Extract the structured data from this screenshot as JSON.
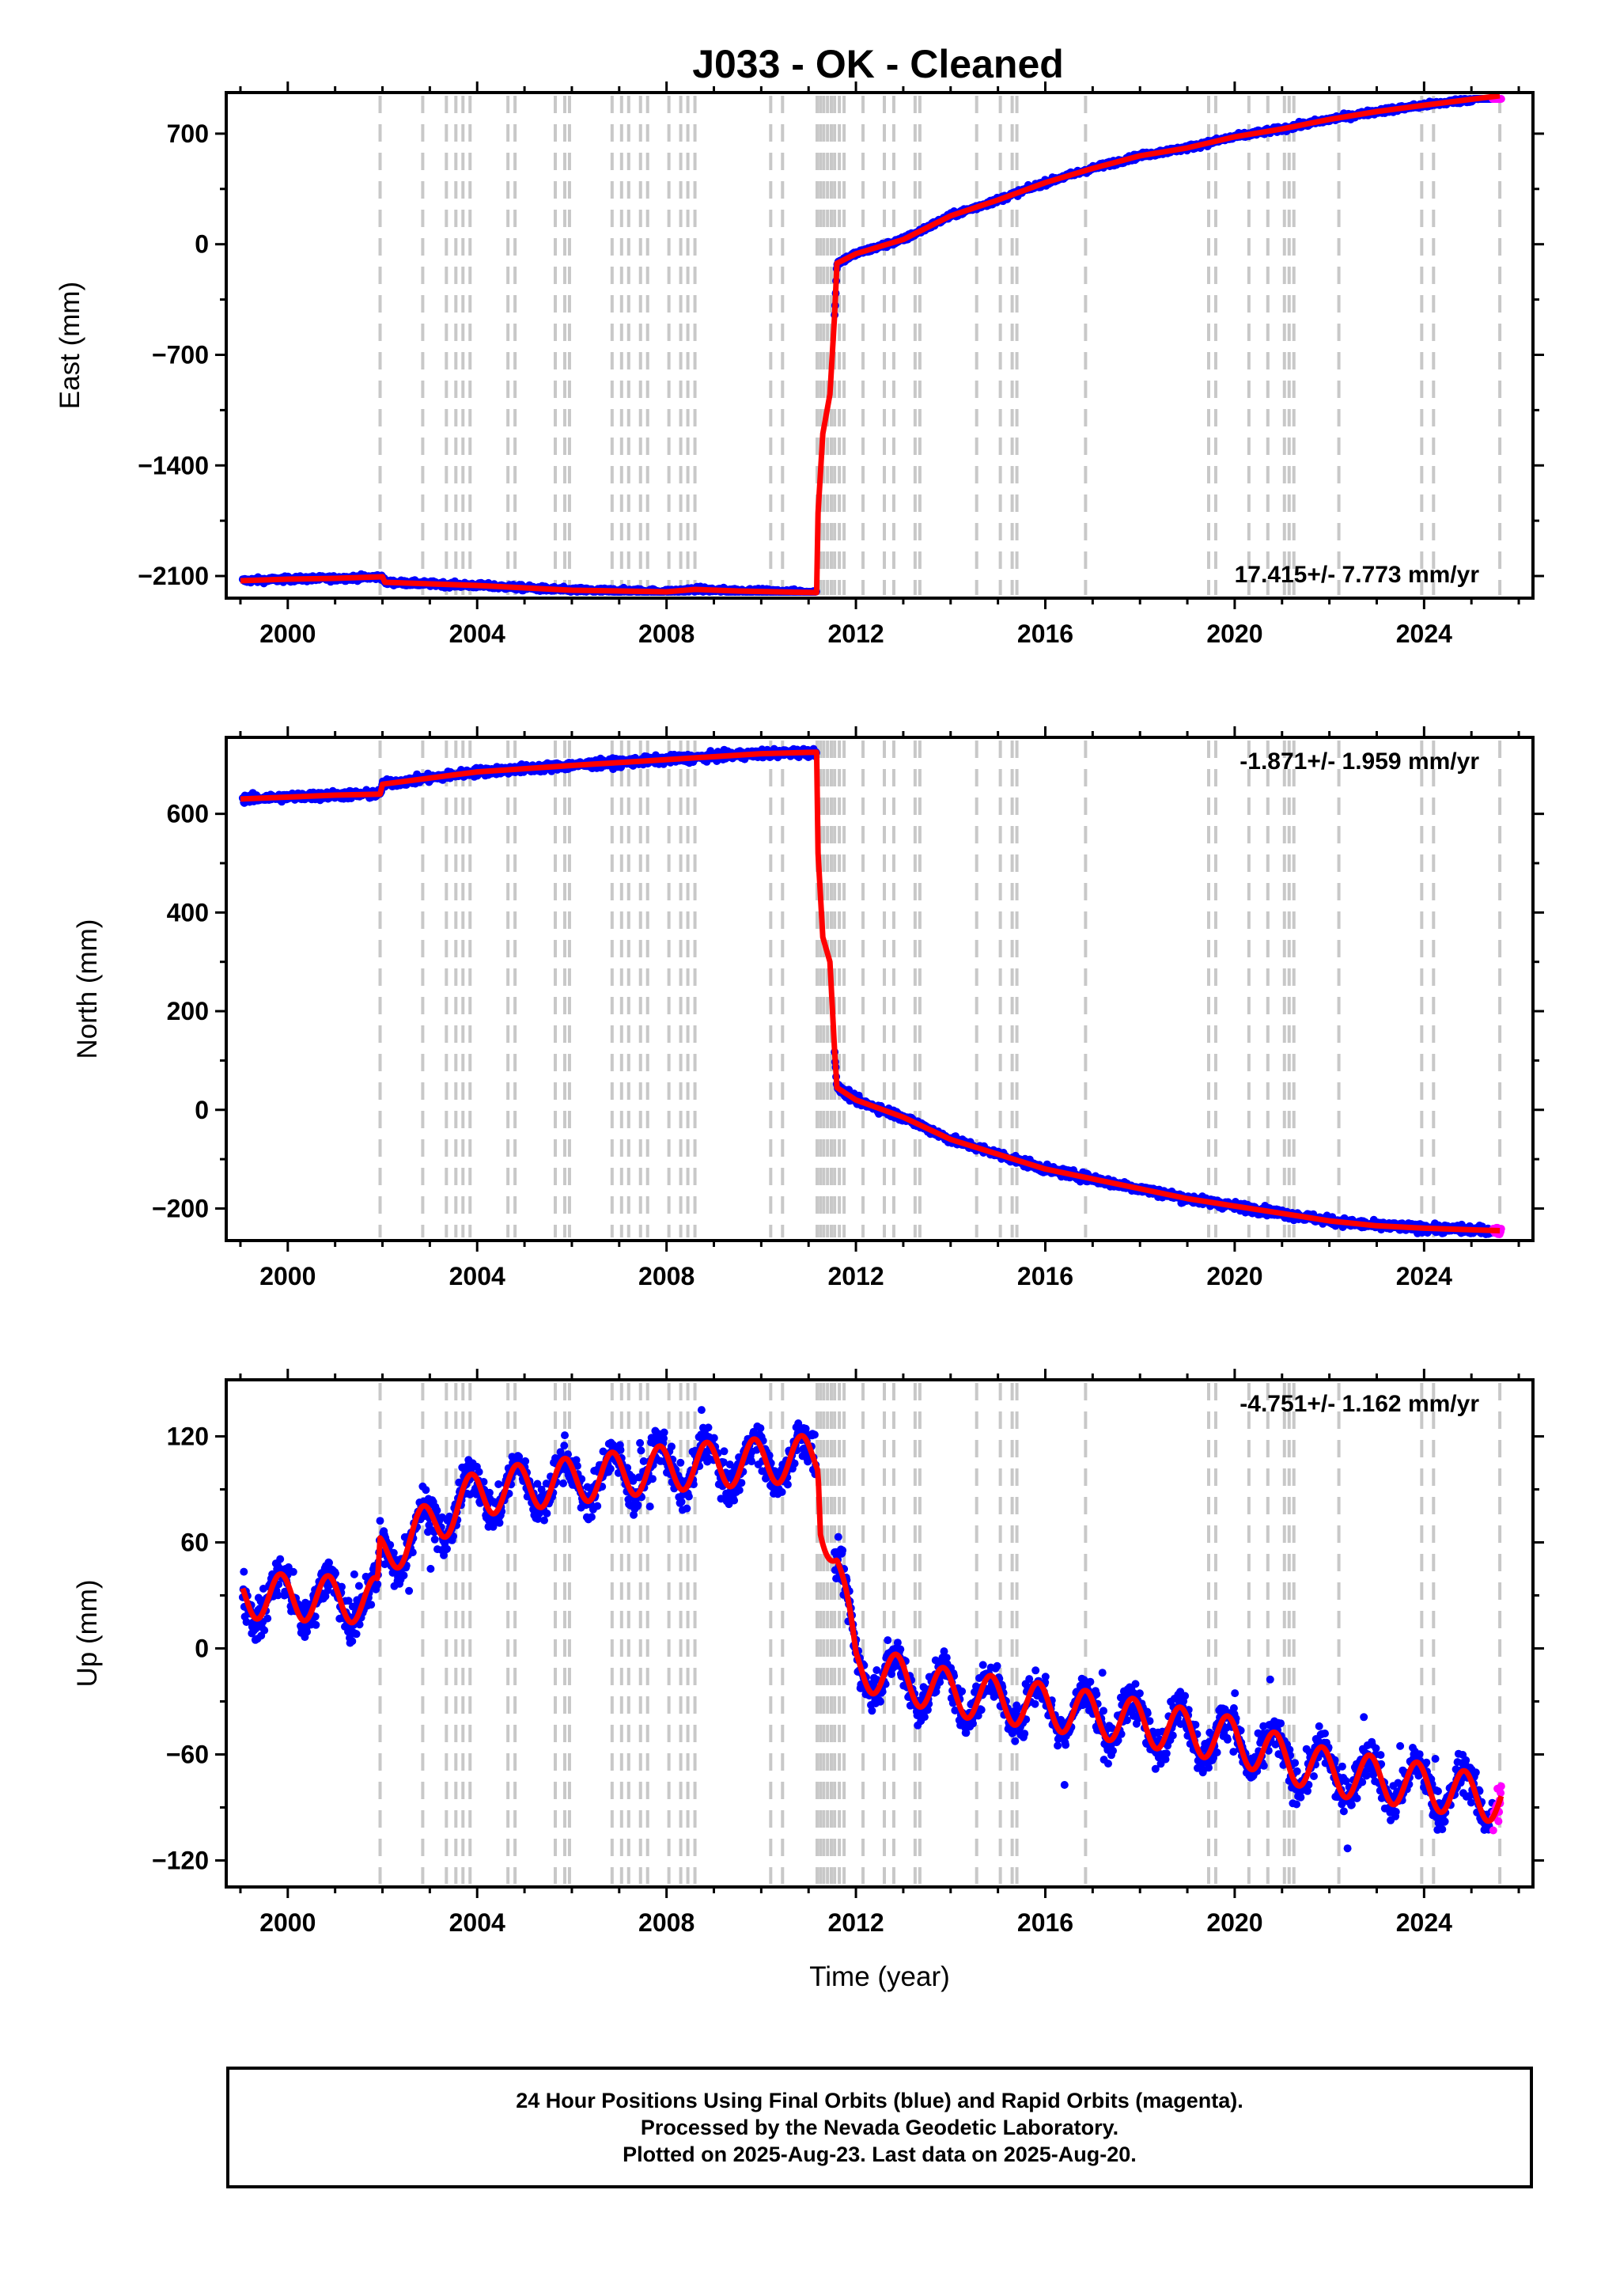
{
  "colors": {
    "final_orbits": "#0000ff",
    "rapid_orbits": "#ff00ff",
    "model_fit": "#ff0000",
    "equipment_change": "#c8c8c8"
  },
  "chart_data": [
    {
      "type": "scatter",
      "title": "J033  - OK - Cleaned",
      "xlabel": "",
      "ylabel": "East (mm)",
      "xlim": [
        1998.7,
        2026.3
      ],
      "ylim": [
        -2240,
        960
      ],
      "x_ticks": [
        "2000",
        "2004",
        "2008",
        "2012",
        "2016",
        "2020",
        "2024"
      ],
      "y_ticks": [
        "700",
        "0",
        "−700",
        "−1400",
        "−2100"
      ],
      "rate_label": "17.415+/- 7.773 mm/yr",
      "fit_line": [
        [
          1999.0,
          -2130
        ],
        [
          2000.0,
          -2120
        ],
        [
          2001.0,
          -2115
        ],
        [
          2002.0,
          -2105
        ],
        [
          2002.05,
          -2140
        ],
        [
          2004.0,
          -2160
        ],
        [
          2006.0,
          -2190
        ],
        [
          2008.0,
          -2200
        ],
        [
          2008.6,
          -2185
        ],
        [
          2009.5,
          -2195
        ],
        [
          2011.17,
          -2205
        ],
        [
          2011.2,
          -1700
        ],
        [
          2011.3,
          -1200
        ],
        [
          2011.45,
          -950
        ],
        [
          2011.55,
          -450
        ],
        [
          2011.6,
          -120
        ],
        [
          2012.0,
          -60
        ],
        [
          2013.0,
          30
        ],
        [
          2014.0,
          180
        ],
        [
          2015.0,
          280
        ],
        [
          2016.0,
          390
        ],
        [
          2017.0,
          480
        ],
        [
          2018.0,
          560
        ],
        [
          2019.0,
          610
        ],
        [
          2020.0,
          680
        ],
        [
          2021.0,
          730
        ],
        [
          2022.0,
          790
        ],
        [
          2023.0,
          840
        ],
        [
          2024.0,
          880
        ],
        [
          2025.6,
          940
        ]
      ],
      "scatter_noise": 12
    },
    {
      "type": "scatter",
      "title": "",
      "xlabel": "",
      "ylabel": "North (mm)",
      "xlim": [
        1998.7,
        2026.3
      ],
      "ylim": [
        -265,
        755
      ],
      "x_ticks": [
        "2000",
        "2004",
        "2008",
        "2012",
        "2016",
        "2020",
        "2024"
      ],
      "y_ticks": [
        "600",
        "400",
        "200",
        "0",
        "−200"
      ],
      "rate_label": "-1.871+/- 1.959 mm/yr",
      "fit_line": [
        [
          1999.0,
          630
        ],
        [
          2001.0,
          638
        ],
        [
          2001.95,
          640
        ],
        [
          2002.0,
          660
        ],
        [
          2004.0,
          685
        ],
        [
          2006.0,
          698
        ],
        [
          2008.0,
          710
        ],
        [
          2010.0,
          722
        ],
        [
          2011.17,
          725
        ],
        [
          2011.2,
          520
        ],
        [
          2011.3,
          350
        ],
        [
          2011.45,
          300
        ],
        [
          2011.55,
          120
        ],
        [
          2011.6,
          45
        ],
        [
          2012.0,
          20
        ],
        [
          2013.0,
          -15
        ],
        [
          2014.0,
          -60
        ],
        [
          2015.0,
          -90
        ],
        [
          2016.0,
          -120
        ],
        [
          2017.0,
          -140
        ],
        [
          2018.0,
          -160
        ],
        [
          2019.0,
          -180
        ],
        [
          2020.0,
          -195
        ],
        [
          2021.0,
          -210
        ],
        [
          2022.0,
          -225
        ],
        [
          2023.0,
          -235
        ],
        [
          2024.0,
          -240
        ],
        [
          2025.6,
          -245
        ]
      ],
      "scatter_noise": 6
    },
    {
      "type": "scatter",
      "title": "",
      "xlabel": "Time (year)",
      "ylabel": "Up (mm)",
      "xlim": [
        1998.7,
        2026.3
      ],
      "ylim": [
        -135,
        152
      ],
      "x_ticks": [
        "2000",
        "2004",
        "2008",
        "2012",
        "2016",
        "2020",
        "2024"
      ],
      "y_ticks": [
        "120",
        "60",
        "0",
        "−60",
        "−120"
      ],
      "rate_label": "-4.751+/- 1.162 mm/yr",
      "seasonal": {
        "amplitude": 13,
        "phase": 0.6
      },
      "trend_line": [
        [
          1999.0,
          30
        ],
        [
          2001.9,
          27
        ],
        [
          2001.95,
          52
        ],
        [
          2003.0,
          70
        ],
        [
          2004.0,
          88
        ],
        [
          2006.0,
          95
        ],
        [
          2008.0,
          102
        ],
        [
          2011.2,
          108
        ],
        [
          2011.25,
          75
        ],
        [
          2011.6,
          50
        ],
        [
          2012.0,
          -10
        ],
        [
          2014.0,
          -25
        ],
        [
          2016.0,
          -33
        ],
        [
          2018.0,
          -42
        ],
        [
          2020.0,
          -52
        ],
        [
          2021.0,
          -62
        ],
        [
          2022.0,
          -70
        ],
        [
          2024.0,
          -78
        ],
        [
          2025.6,
          -86
        ]
      ],
      "scatter_noise": 8
    }
  ],
  "equipment_changes": [
    2001.95,
    2002.85,
    2003.35,
    2003.55,
    2003.7,
    2003.85,
    2004.65,
    2004.8,
    2005.65,
    2005.85,
    2005.95,
    2006.85,
    2007.05,
    2007.2,
    2007.45,
    2007.6,
    2008.05,
    2008.3,
    2008.45,
    2008.6,
    2010.2,
    2010.45,
    2011.18,
    2011.25,
    2011.32,
    2011.4,
    2011.48,
    2011.55,
    2011.65,
    2011.75,
    2012.15,
    2012.6,
    2012.8,
    2013.25,
    2013.35,
    2014.55,
    2015.05,
    2015.3,
    2015.4,
    2016.85,
    2019.45,
    2019.6,
    2020.3,
    2020.7,
    2021.05,
    2021.15,
    2021.25,
    2022.2,
    2023.95,
    2024.2,
    2025.6
  ],
  "footer": {
    "line1": "24 Hour Positions Using Final Orbits (blue) and Rapid Orbits (magenta).",
    "line2": "Processed by the Nevada Geodetic Laboratory.",
    "line3": "Plotted on 2025-Aug-23. Last data on 2025-Aug-20."
  }
}
